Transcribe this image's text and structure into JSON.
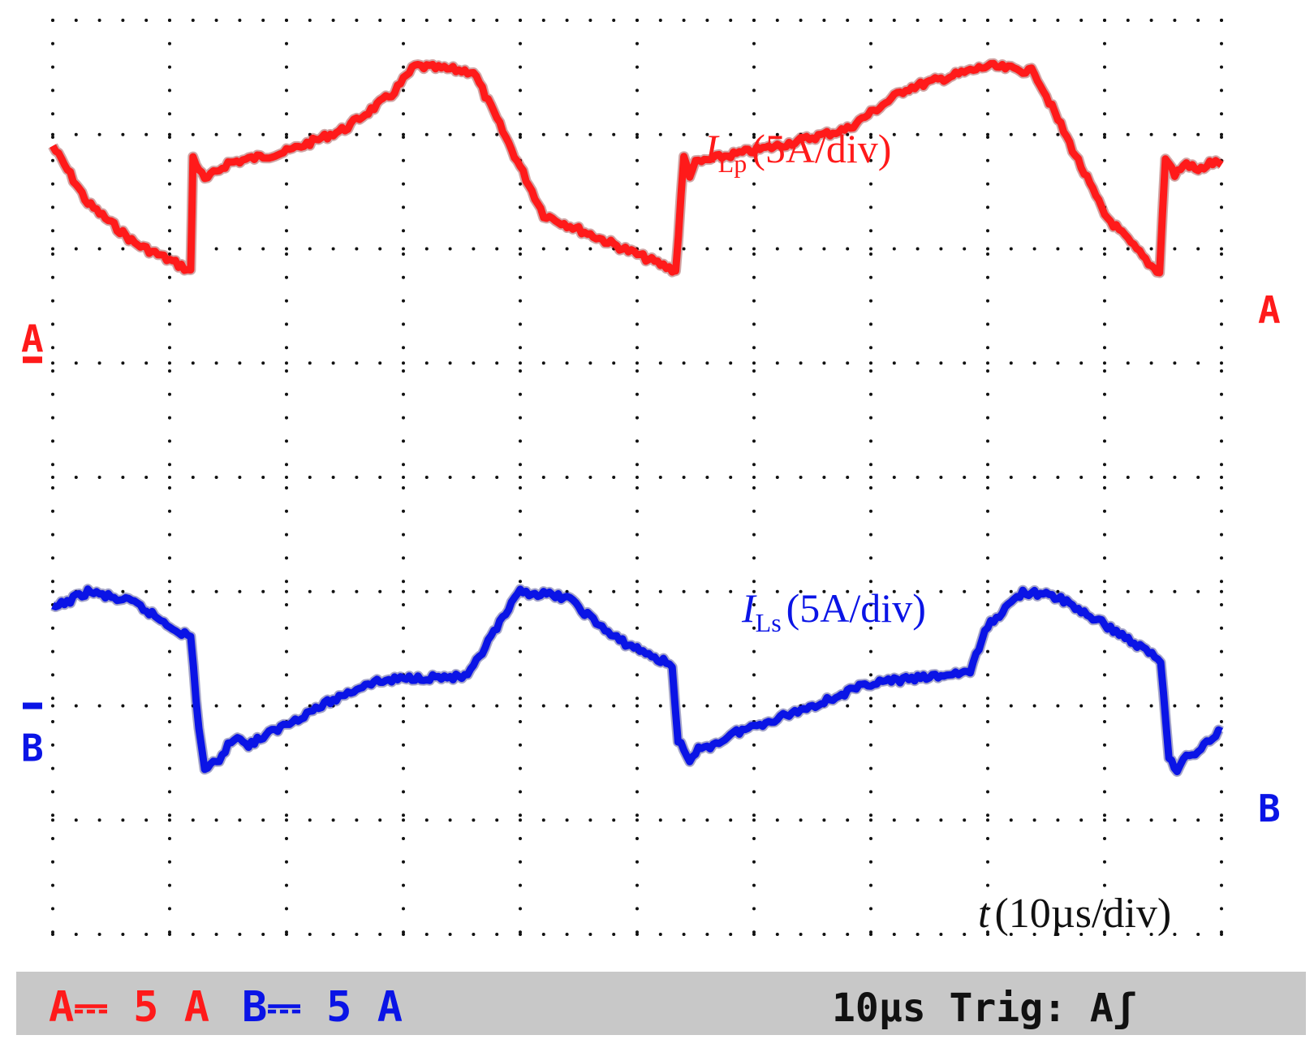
{
  "chart_data": {
    "type": "line",
    "title": "",
    "grid": true,
    "x_divisions": 10,
    "y_divisions": 8,
    "x_unit_per_div": "10µs",
    "series": [
      {
        "name": "I_Lp",
        "label_main": "I",
        "label_sub": "Lp",
        "label_scale": "(5A/div)",
        "channel": "A",
        "color": "#ff1a1a",
        "x_div": [
          0,
          0.3,
          0.7,
          1.1,
          1.18,
          1.2,
          1.25,
          1.3,
          1.5,
          2.0,
          2.5,
          2.9,
          3.1,
          3.6,
          4.2,
          5.3,
          5.33,
          5.4,
          5.45,
          5.5,
          5.7,
          6.2,
          6.8,
          7.3,
          8.0,
          8.4,
          9.0,
          9.4,
          9.47,
          9.52,
          9.6,
          9.7,
          9.8,
          9.9,
          10.0
        ],
        "y_div": [
          6.9,
          6.4,
          6.05,
          5.85,
          5.8,
          6.8,
          6.7,
          6.6,
          6.75,
          6.85,
          7.05,
          7.35,
          7.6,
          7.55,
          6.3,
          5.82,
          5.8,
          6.8,
          6.65,
          6.75,
          6.8,
          6.9,
          7.05,
          7.4,
          7.6,
          7.55,
          6.3,
          5.85,
          5.8,
          6.8,
          6.65,
          6.75,
          6.68,
          6.75,
          6.75
        ]
      },
      {
        "name": "I_Ls",
        "label_main": "I",
        "label_sub": "Ls",
        "label_scale": "(5A/div)",
        "channel": "B",
        "color": "#0a14e6",
        "x_div": [
          0,
          0.3,
          0.7,
          1.0,
          1.18,
          1.25,
          1.3,
          1.4,
          1.5,
          1.58,
          1.65,
          1.75,
          2.2,
          2.7,
          3.1,
          3.55,
          3.75,
          4.0,
          4.4,
          4.8,
          5.3,
          5.35,
          5.45,
          5.55,
          5.65,
          5.8,
          6.5,
          7.0,
          7.5,
          7.85,
          8.0,
          8.3,
          8.6,
          9.1,
          9.48,
          9.55,
          9.62,
          9.7,
          9.8,
          9.9,
          10.0
        ],
        "y_div": [
          2.85,
          3.0,
          2.9,
          2.7,
          2.6,
          1.8,
          1.45,
          1.5,
          1.65,
          1.75,
          1.65,
          1.7,
          1.95,
          2.2,
          2.25,
          2.25,
          2.6,
          3.0,
          2.95,
          2.6,
          2.35,
          1.7,
          1.5,
          1.65,
          1.65,
          1.75,
          2.0,
          2.2,
          2.25,
          2.3,
          2.7,
          3.0,
          2.95,
          2.65,
          2.4,
          1.55,
          1.45,
          1.55,
          1.6,
          1.7,
          1.8
        ]
      }
    ],
    "channel_markers": [
      {
        "label": "A",
        "color": "#ff1a1a",
        "level_div": 5.0
      },
      {
        "label": "B",
        "color": "#0a14e6",
        "level_div": 2.0
      }
    ],
    "time_label_var": "t",
    "time_label_scale": "(10µs/div)"
  },
  "status_bar": {
    "channel_a": "A⎓ 5 A",
    "channel_b": "B⎓ 5 A",
    "timebase": "10µs Trig: Aʃ",
    "background": "#c8c8c8"
  }
}
